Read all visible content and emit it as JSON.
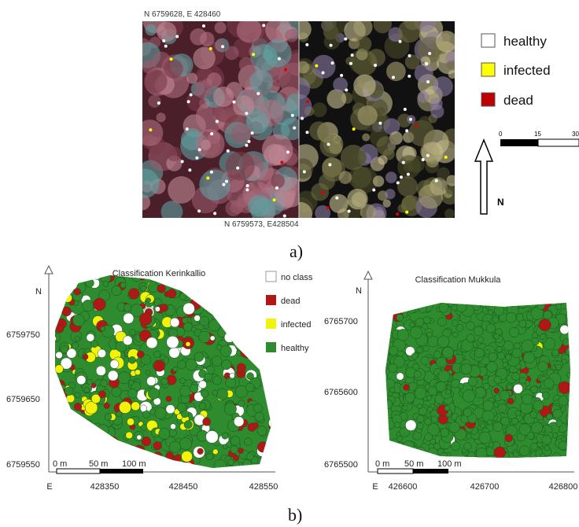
{
  "panel_a": {
    "top_coordinate": "N 6759628, E 428460",
    "bottom_coordinate": "N 6759573, E428504",
    "legend": [
      "healthy",
      "infected",
      "dead"
    ],
    "scale_labels": [
      "0",
      "15",
      "30"
    ],
    "north_label": "N",
    "caption": "a)"
  },
  "panel_b": {
    "caption": "b)",
    "legend": [
      "no class",
      "dead",
      "infected",
      "healthy"
    ],
    "maps": [
      {
        "title": "Classification Kerinkallio",
        "north_label": "N",
        "yticks": [
          "6759750",
          "6759650",
          "6759550"
        ],
        "xticks": [
          "E",
          "428350",
          "428450",
          "428550"
        ],
        "scale_labels": [
          "0 m",
          "50 m",
          "100 m"
        ]
      },
      {
        "title": "Classification Mukkula",
        "north_label": "N",
        "yticks": [
          "6765700",
          "6765600",
          "6765500"
        ],
        "xticks": [
          "E",
          "426600",
          "426700",
          "426800"
        ],
        "scale_labels": [
          "0 m",
          "50 m",
          "100 m"
        ]
      }
    ]
  }
}
